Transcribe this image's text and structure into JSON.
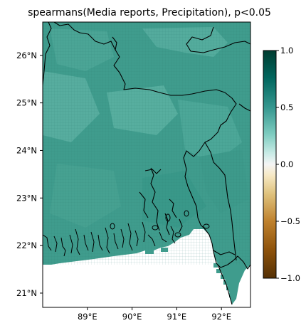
{
  "chart_data": {
    "type": "heatmap",
    "title": "spearmans(Media reports, Precipitation), p<0.05",
    "x_ticks": [
      "89°E",
      "90°E",
      "91°E",
      "92°E"
    ],
    "x_tick_values": [
      89,
      90,
      91,
      92
    ],
    "y_ticks": [
      "21°N",
      "22°N",
      "23°N",
      "24°N",
      "25°N",
      "26°N"
    ],
    "y_tick_values": [
      21,
      22,
      23,
      24,
      25,
      26
    ],
    "x_range": [
      88.0,
      92.65
    ],
    "y_range": [
      20.7,
      26.7
    ],
    "colorbar": {
      "colormap": "BrBG",
      "range": [
        -1.0,
        1.0
      ],
      "tick_values": [
        1.0,
        0.5,
        0.0,
        -0.5,
        -1.0
      ],
      "tick_labels": [
        "1.0",
        "0.5",
        "0.0",
        "−0.5",
        "−1.0"
      ]
    },
    "colors": {
      "field_fill": "#3f9c8d",
      "field_light": "#5fb3a5",
      "field_dark": "#2f8e80",
      "boundary": "#000000"
    }
  }
}
